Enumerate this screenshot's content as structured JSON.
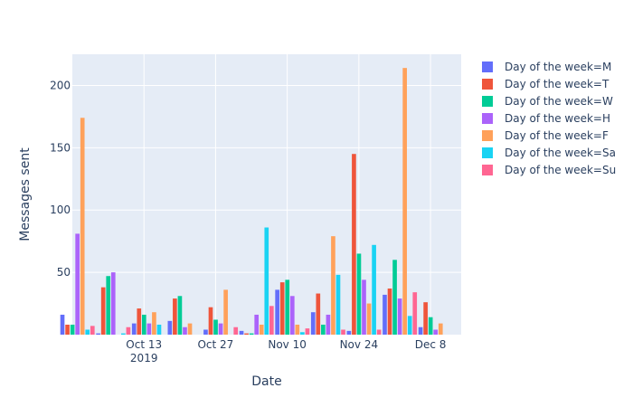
{
  "chart_data": {
    "type": "bar",
    "title": "",
    "xlabel": "Date",
    "ylabel": "Messages sent",
    "ylim": [
      0,
      225
    ],
    "yticks": [
      50,
      100,
      150,
      200
    ],
    "xticks": [
      "2019-10-13",
      "2019-10-27",
      "2019-11-10",
      "2019-11-24",
      "2019-12-08"
    ],
    "xtick_labels": [
      [
        "Oct 13",
        "2019"
      ],
      [
        "Oct 27",
        ""
      ],
      [
        "Nov 10",
        ""
      ],
      [
        "Nov 24",
        ""
      ],
      [
        "Dec 8",
        ""
      ]
    ],
    "x_range": [
      "2019-09-29",
      "2019-12-14"
    ],
    "barmode": "group",
    "grid": true,
    "legend_position": "right",
    "background": "#e5ecf6",
    "series": [
      {
        "name": "Day of the week=M",
        "color": "#636efa",
        "points": [
          [
            "2019-09-30",
            16
          ],
          [
            "2019-10-07",
            1
          ],
          [
            "2019-10-14",
            9
          ],
          [
            "2019-10-21",
            11
          ],
          [
            "2019-10-28",
            4
          ],
          [
            "2019-11-04",
            3
          ],
          [
            "2019-11-11",
            36
          ],
          [
            "2019-11-18",
            18
          ],
          [
            "2019-11-25",
            3
          ],
          [
            "2019-12-02",
            32
          ],
          [
            "2019-12-09",
            6
          ]
        ]
      },
      {
        "name": "Day of the week=T",
        "color": "#EF553B",
        "points": [
          [
            "2019-09-30",
            8
          ],
          [
            "2019-10-07",
            38
          ],
          [
            "2019-10-14",
            21
          ],
          [
            "2019-10-21",
            29
          ],
          [
            "2019-10-28",
            22
          ],
          [
            "2019-11-04",
            1
          ],
          [
            "2019-11-11",
            42
          ],
          [
            "2019-11-18",
            33
          ],
          [
            "2019-11-25",
            145
          ],
          [
            "2019-12-02",
            37
          ],
          [
            "2019-12-09",
            26
          ]
        ]
      },
      {
        "name": "Day of the week=W",
        "color": "#00cc96",
        "points": [
          [
            "2019-09-30",
            8
          ],
          [
            "2019-10-07",
            47
          ],
          [
            "2019-10-14",
            16
          ],
          [
            "2019-10-21",
            31
          ],
          [
            "2019-10-28",
            12
          ],
          [
            "2019-11-04",
            1
          ],
          [
            "2019-11-11",
            44
          ],
          [
            "2019-11-18",
            8
          ],
          [
            "2019-11-25",
            65
          ],
          [
            "2019-12-02",
            60
          ],
          [
            "2019-12-09",
            14
          ]
        ]
      },
      {
        "name": "Day of the week=H",
        "color": "#ab63fa",
        "points": [
          [
            "2019-09-30",
            81
          ],
          [
            "2019-10-07",
            50
          ],
          [
            "2019-10-14",
            9
          ],
          [
            "2019-10-21",
            6
          ],
          [
            "2019-10-28",
            9
          ],
          [
            "2019-11-04",
            16
          ],
          [
            "2019-11-11",
            31
          ],
          [
            "2019-11-18",
            16
          ],
          [
            "2019-11-25",
            44
          ],
          [
            "2019-12-02",
            29
          ],
          [
            "2019-12-09",
            4
          ]
        ]
      },
      {
        "name": "Day of the week=F",
        "color": "#FFA15A",
        "points": [
          [
            "2019-09-30",
            174
          ],
          [
            "2019-10-14",
            18
          ],
          [
            "2019-10-21",
            9
          ],
          [
            "2019-10-28",
            36
          ],
          [
            "2019-11-04",
            8
          ],
          [
            "2019-11-11",
            8
          ],
          [
            "2019-11-18",
            79
          ],
          [
            "2019-11-25",
            25
          ],
          [
            "2019-12-02",
            214
          ],
          [
            "2019-12-09",
            9
          ]
        ]
      },
      {
        "name": "Day of the week=Sa",
        "color": "#19d3f3",
        "points": [
          [
            "2019-09-30",
            4
          ],
          [
            "2019-10-07",
            1
          ],
          [
            "2019-10-14",
            8
          ],
          [
            "2019-11-04",
            86
          ],
          [
            "2019-11-11",
            2
          ],
          [
            "2019-11-18",
            48
          ],
          [
            "2019-11-25",
            72
          ],
          [
            "2019-12-02",
            15
          ]
        ]
      },
      {
        "name": "Day of the week=Su",
        "color": "#FF6692",
        "points": [
          [
            "2019-09-30",
            7
          ],
          [
            "2019-10-07",
            6
          ],
          [
            "2019-10-28",
            6
          ],
          [
            "2019-11-04",
            23
          ],
          [
            "2019-11-11",
            5
          ],
          [
            "2019-11-18",
            4
          ],
          [
            "2019-11-25",
            4
          ],
          [
            "2019-12-02",
            34
          ]
        ]
      }
    ]
  }
}
